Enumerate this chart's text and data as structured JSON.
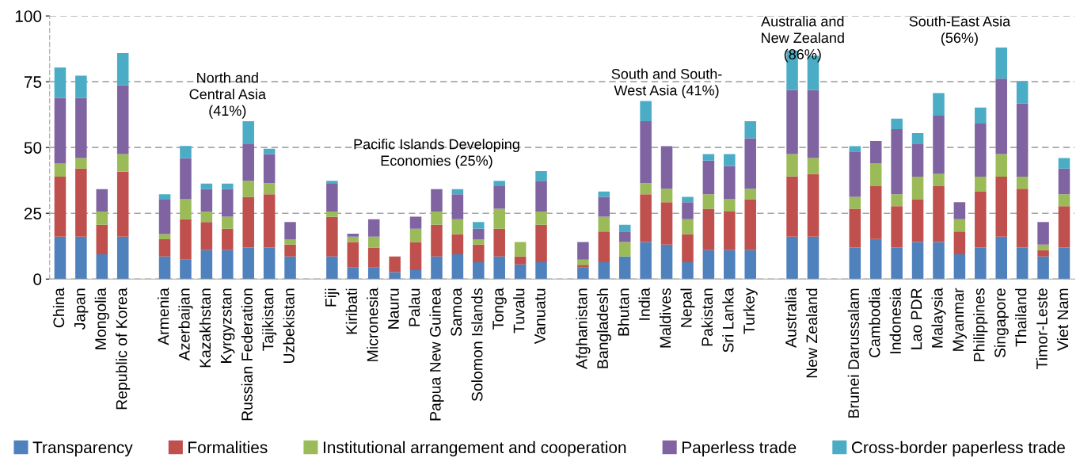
{
  "chart_data": {
    "type": "bar",
    "stacked": true,
    "categories": [
      "China",
      "Japan",
      "Mongolia",
      "Republic of Korea",
      null,
      "Armenia",
      "Azerbaijan",
      "Kazakhstan",
      "Kyrgyzstan",
      "Russian Federation",
      "Tajikistan",
      "Uzbekistan",
      null,
      "Fiji",
      "Kiribati",
      "Micronesia",
      "Nauru",
      "Palau",
      "Papua New Guinea",
      "Samoa",
      "Solomon Islands",
      "Tonga",
      "Tuvalu",
      "Vanuatu",
      null,
      "Afghanistan",
      "Bangladesh",
      "Bhutan",
      "India",
      "Maldives",
      "Nepal",
      "Pakistan",
      "Sri Lanka",
      "Turkey",
      null,
      "Australia",
      "New Zealand",
      null,
      "Brunei Darussalam",
      "Cambodia",
      "Indonesia",
      "Lao PDR",
      "Malaysia",
      "Myanmar",
      "Philippines",
      "Singapore",
      "Thailand",
      "Timor-Leste",
      "Viet Nam"
    ],
    "series": [
      {
        "name": "Transparency",
        "color": "#4f81bd",
        "values": [
          16.1,
          16.1,
          9.4,
          16.1,
          null,
          8.6,
          7.4,
          11,
          11,
          12,
          12,
          8.6,
          null,
          8.6,
          4.4,
          4.4,
          2.6,
          3.4,
          8.6,
          9.4,
          6.4,
          8.6,
          5.6,
          6.4,
          null,
          4.4,
          6.4,
          8.6,
          14.1,
          13.1,
          6.4,
          11,
          11,
          11,
          null,
          16.1,
          16.1,
          null,
          12,
          15.2,
          12,
          14.1,
          14.1,
          9.4,
          12,
          16.1,
          12,
          8.6,
          12
        ]
      },
      {
        "name": "Formalities",
        "color": "#c0504d",
        "values": [
          22.8,
          25.9,
          11.2,
          24.7,
          null,
          6.5,
          15.3,
          10.7,
          8.1,
          19.2,
          20.2,
          4.5,
          null,
          15,
          9.7,
          7.6,
          6,
          10.7,
          12,
          7.7,
          6.7,
          10.5,
          3,
          14.2,
          null,
          1,
          11.7,
          null,
          18.1,
          16.1,
          10.7,
          15.7,
          14.7,
          19.2,
          null,
          22.9,
          23.9,
          null,
          14.7,
          20.1,
          15.7,
          16.1,
          21.2,
          8.7,
          21.2,
          22.8,
          22.3,
          2.4,
          15.7
        ]
      },
      {
        "name": "Institutional arrangement and cooperation",
        "color": "#9bbb59",
        "values": [
          5,
          4,
          5.1,
          6.7,
          null,
          2,
          7.6,
          4,
          4.6,
          6.1,
          4.2,
          2,
          null,
          2.1,
          2,
          4.1,
          null,
          5,
          5.1,
          5.6,
          2,
          7.6,
          5.5,
          5.1,
          null,
          2,
          5.6,
          5.5,
          4.2,
          5.1,
          5.6,
          5.5,
          4.6,
          4.1,
          null,
          8.5,
          6,
          null,
          4.5,
          8.7,
          4.5,
          8.7,
          4.7,
          4.6,
          5.7,
          8.6,
          4.6,
          2.1,
          4.5
        ]
      },
      {
        "name": "Paperless trade",
        "color": "#8064a2",
        "values": [
          25,
          22.8,
          8.5,
          26.2,
          null,
          13.1,
          15.6,
          8.5,
          10.5,
          14.2,
          11.1,
          6.6,
          null,
          10.5,
          1.1,
          6.6,
          null,
          4.6,
          8.5,
          9.5,
          4,
          8.6,
          null,
          11.6,
          null,
          6.7,
          7.5,
          4,
          23.6,
          16.2,
          6.5,
          12.8,
          12.7,
          19.2,
          null,
          24.3,
          25.8,
          null,
          17.3,
          8.5,
          24.8,
          12.6,
          22.1,
          6.5,
          20.2,
          28.7,
          27.8,
          8.6,
          9.8
        ]
      },
      {
        "name": "Cross-border paperless trade",
        "color": "#4bacc6",
        "values": [
          11.5,
          8.5,
          null,
          12.2,
          null,
          2,
          4.7,
          2.1,
          2.1,
          8.5,
          2,
          null,
          null,
          1.1,
          null,
          null,
          null,
          null,
          null,
          2,
          2.6,
          2,
          null,
          3.7,
          null,
          null,
          2.1,
          2.5,
          7.7,
          null,
          2,
          2.5,
          4.5,
          6.5,
          null,
          15.1,
          13.1,
          null,
          2,
          null,
          4,
          4,
          8.6,
          null,
          6.1,
          11.8,
          8.6,
          null,
          4
        ]
      }
    ],
    "ylim": [
      0,
      100
    ],
    "yticks": [
      0,
      25,
      50,
      75,
      100
    ],
    "grid": "y",
    "legend": "bottom",
    "annotations": [
      "North and\nCentral Asia\n(41%)",
      "Pacific Islands Developing\nEconomies (25%)",
      "South and South-\nWest Asia (41%)",
      "Australia and\nNew Zealand\n(86%)",
      "South-East Asia\n(56%)"
    ]
  }
}
